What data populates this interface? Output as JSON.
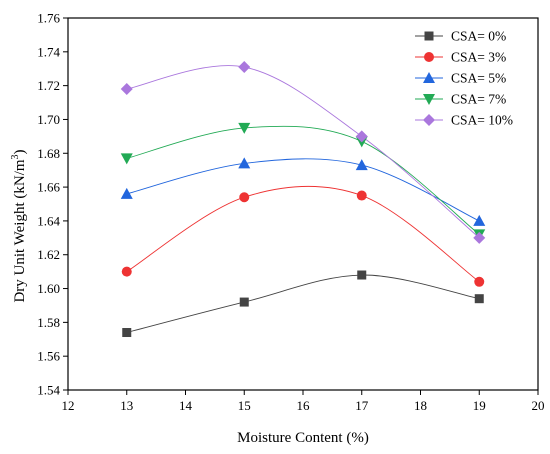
{
  "chart_data": {
    "type": "line",
    "xlabel": "Moisture Content (%)",
    "ylabel_main": "Dry Unit Weight (kN/m",
    "ylabel_sup": "3",
    "ylabel_end": ")",
    "xlim": [
      12,
      20
    ],
    "ylim": [
      1.54,
      1.76
    ],
    "xticks": [
      12,
      13,
      14,
      15,
      16,
      17,
      18,
      19,
      20
    ],
    "yticks": [
      1.54,
      1.56,
      1.58,
      1.6,
      1.62,
      1.64,
      1.66,
      1.68,
      1.7,
      1.72,
      1.74,
      1.76
    ],
    "x": [
      13,
      15,
      17,
      19
    ],
    "series": [
      {
        "name": "CSA= 0%",
        "values": [
          1.574,
          1.592,
          1.608,
          1.594
        ],
        "color": "#444444",
        "marker": "square"
      },
      {
        "name": "CSA= 3%",
        "values": [
          1.61,
          1.654,
          1.655,
          1.604
        ],
        "color": "#ee3333",
        "marker": "circle"
      },
      {
        "name": "CSA= 5%",
        "values": [
          1.656,
          1.674,
          1.673,
          1.64
        ],
        "color": "#2266dd",
        "marker": "triangle-up"
      },
      {
        "name": "CSA= 7%",
        "values": [
          1.677,
          1.695,
          1.687,
          1.632
        ],
        "color": "#22aa55",
        "marker": "triangle-down"
      },
      {
        "name": "CSA= 10%",
        "values": [
          1.718,
          1.731,
          1.69,
          1.63
        ],
        "color": "#aa77dd",
        "marker": "diamond"
      }
    ],
    "legend_position": "top-right",
    "grid": false
  }
}
